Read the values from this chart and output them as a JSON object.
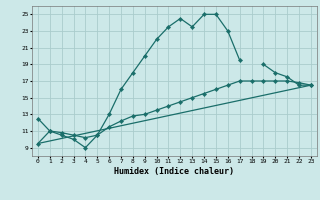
{
  "title": "",
  "xlabel": "Humidex (Indice chaleur)",
  "xlim": [
    -0.5,
    23.5
  ],
  "ylim": [
    8,
    26
  ],
  "yticks": [
    9,
    11,
    13,
    15,
    17,
    19,
    21,
    23,
    25
  ],
  "xticks": [
    0,
    1,
    2,
    3,
    4,
    5,
    6,
    7,
    8,
    9,
    10,
    11,
    12,
    13,
    14,
    15,
    16,
    17,
    18,
    19,
    20,
    21,
    22,
    23
  ],
  "bg_color": "#cce8e8",
  "grid_color": "#aacccc",
  "line_color": "#1a6e6a",
  "line1_x": [
    0,
    1,
    2,
    3,
    4,
    5,
    6,
    7,
    8,
    9,
    10,
    11,
    12,
    13,
    14,
    15,
    16,
    17
  ],
  "line1_y": [
    12.5,
    11,
    10.5,
    10,
    9,
    10.5,
    13,
    16,
    18,
    20,
    22,
    23.5,
    24.5,
    23.5,
    25,
    25,
    23,
    19.5
  ],
  "line2_x": [
    19,
    20,
    21,
    22,
    23
  ],
  "line2_y": [
    19,
    18,
    17.5,
    16.5,
    16.5
  ],
  "line3_x": [
    0,
    1,
    2,
    3,
    4,
    5,
    6,
    7,
    8,
    9,
    10,
    11,
    12,
    13,
    14,
    15,
    16,
    17,
    18,
    19,
    20,
    21,
    22,
    23
  ],
  "line3_y": [
    9.5,
    11,
    10.8,
    10.5,
    10.2,
    10.5,
    11.5,
    12.2,
    12.8,
    13.0,
    13.5,
    14.0,
    14.5,
    15.0,
    15.5,
    16.0,
    16.5,
    17.0,
    17.0,
    17.0,
    17.0,
    17.0,
    16.8,
    16.5
  ],
  "line4_x": [
    0,
    23
  ],
  "line4_y": [
    9.5,
    16.5
  ]
}
